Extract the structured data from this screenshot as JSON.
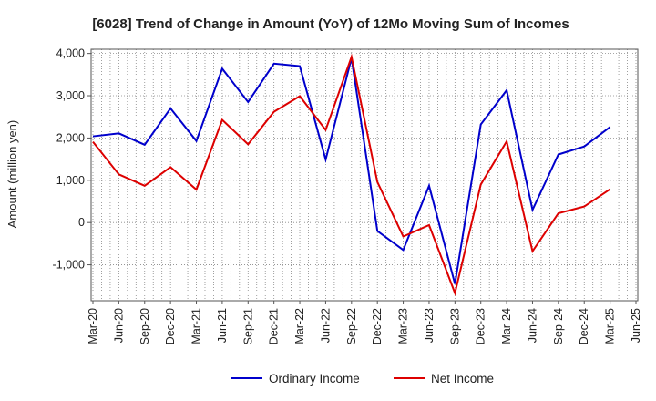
{
  "chart_data": {
    "type": "line",
    "title": "[6028]  Trend of Change in Amount (YoY) of 12Mo Moving Sum of Incomes",
    "xlabel": "",
    "ylabel": "Amount (million yen)",
    "categories": [
      "Mar-20",
      "Jun-20",
      "Sep-20",
      "Dec-20",
      "Mar-21",
      "Jun-21",
      "Sep-21",
      "Dec-21",
      "Mar-22",
      "Jun-22",
      "Sep-22",
      "Dec-22",
      "Mar-23",
      "Jun-23",
      "Sep-23",
      "Dec-23",
      "Mar-24",
      "Jun-24",
      "Sep-24",
      "Dec-24",
      "Mar-25",
      "Jun-25"
    ],
    "ylim": [
      -1850,
      4100
    ],
    "yticks": [
      -1000,
      0,
      1000,
      2000,
      3000,
      4000
    ],
    "ytick_labels": [
      "-1,000",
      "0",
      "1,000",
      "2,000",
      "3,000",
      "4,000"
    ],
    "grid": true,
    "legend_position": "bottom",
    "series": [
      {
        "name": "Ordinary Income",
        "color": "#0000cc",
        "values": [
          2040,
          2110,
          1840,
          2700,
          1930,
          3640,
          2850,
          3760,
          3700,
          1490,
          3890,
          -200,
          -650,
          870,
          -1450,
          2320,
          3130,
          300,
          1610,
          1800,
          2260,
          null
        ]
      },
      {
        "name": "Net Income",
        "color": "#dd0000",
        "values": [
          1910,
          1140,
          870,
          1310,
          780,
          2430,
          1850,
          2620,
          2990,
          2190,
          3920,
          960,
          -330,
          -60,
          -1670,
          900,
          1920,
          -680,
          220,
          380,
          790,
          null
        ]
      }
    ]
  }
}
